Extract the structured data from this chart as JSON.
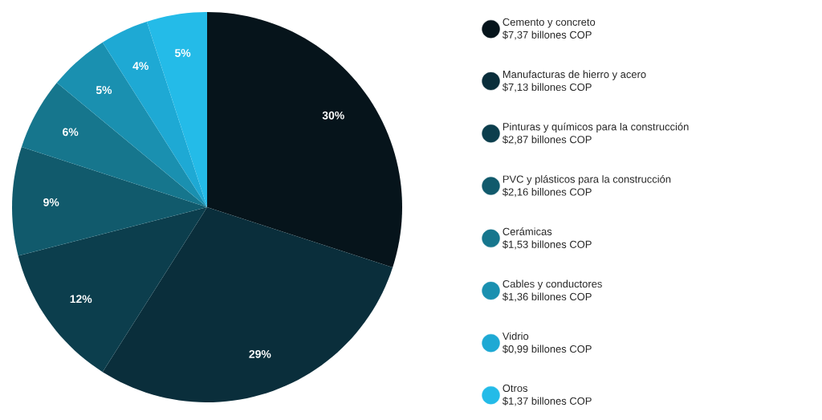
{
  "chart_data": {
    "type": "pie",
    "categories": [
      "Cemento y concreto",
      "Manufacturas de hierro y acero",
      "Pinturas y químicos para la construcción",
      "PVC y plásticos para la construcción",
      "Cerámicas",
      "Cables y conductores",
      "Vidrio",
      "Otros"
    ],
    "values": [
      30,
      29,
      12,
      9,
      6,
      5,
      4,
      5
    ],
    "value_labels": [
      "30%",
      "29%",
      "12%",
      "9%",
      "6%",
      "5%",
      "4%",
      "5%"
    ],
    "annotations": [
      "$7,37 billones COP",
      "$7,13 billones COP",
      "$2,87 billones COP",
      "$2,16 billones COP",
      "$1,53 billones COP",
      "$1,36 billones COP",
      "$0,99 billones COP",
      "$1,37 billones COP"
    ],
    "colors": [
      "#06141b",
      "#0a2e3b",
      "#0c3e4d",
      "#115a6c",
      "#16768d",
      "#1a90b0",
      "#1ea9d4",
      "#24bbe8"
    ],
    "legend": "right"
  }
}
